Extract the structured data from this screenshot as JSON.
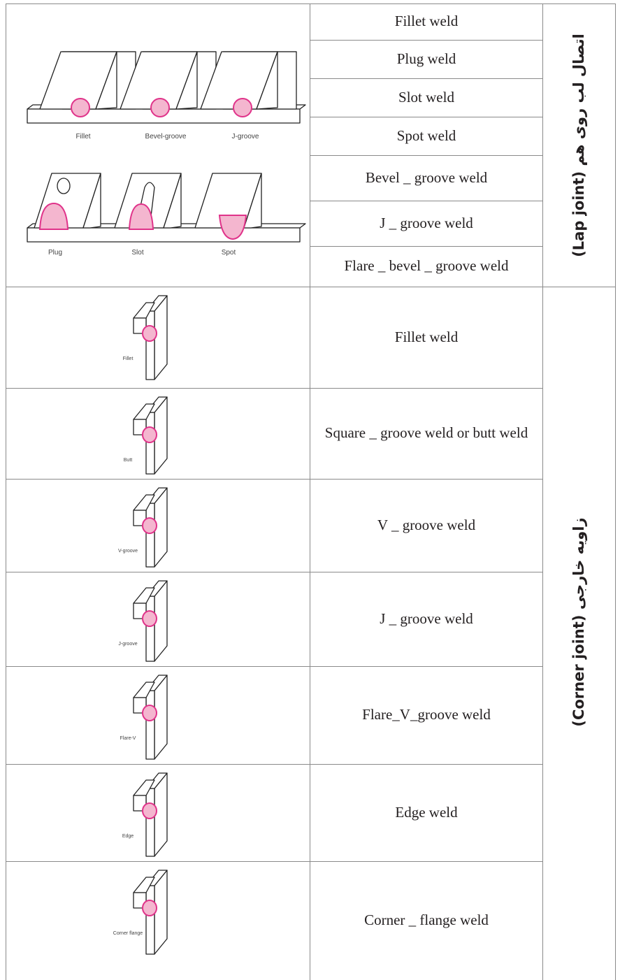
{
  "lap": {
    "label": "اتصال لب روی هم (Lap joint)",
    "rows": [
      "Fillet weld",
      "Plug weld",
      "Slot weld",
      "Spot weld",
      "Bevel _ groove weld",
      "J _ groove weld",
      "Flare _ bevel _ groove weld"
    ],
    "figure_labels": [
      "Fillet",
      "Bevel-groove",
      "J-groove",
      "Plug",
      "Slot",
      "Spot"
    ]
  },
  "corner": {
    "label": "زاویه خارجی (Corner joint)",
    "rows": [
      "Fillet weld",
      "Square _ groove weld or butt weld",
      "V _ groove weld",
      "J _ groove weld",
      "Flare_V_groove weld",
      "Edge weld",
      "Corner _ flange weld"
    ],
    "figure_labels": [
      "Fillet",
      "Butt",
      "V-groove",
      "J-groove",
      "Flare-V",
      "Edge",
      "Corner flange"
    ]
  }
}
